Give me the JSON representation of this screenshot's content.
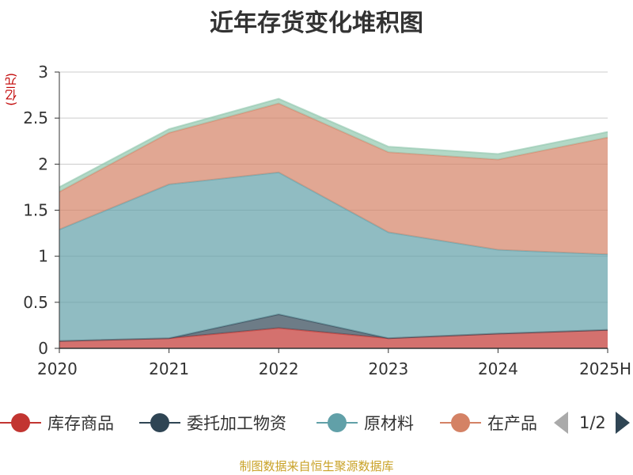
{
  "chart_data": {
    "type": "area",
    "stacked": true,
    "title": "近年存货变化堆积图",
    "unit": "(亿元)",
    "categories": [
      "2020",
      "2021",
      "2022",
      "2023",
      "2024",
      "2025H"
    ],
    "ylim": [
      0,
      3
    ],
    "yticks": [
      "0",
      "0.5",
      "1",
      "1.5",
      "2",
      "2.5",
      "3"
    ],
    "grid": true,
    "series": [
      {
        "name": "库存商品",
        "color": "#c23531",
        "values": [
          0.08,
          0.11,
          0.22,
          0.11,
          0.16,
          0.2
        ]
      },
      {
        "name": "委托加工物资",
        "color": "#2f4554",
        "values": [
          0.0,
          0.0,
          0.15,
          0.0,
          0.0,
          0.0
        ]
      },
      {
        "name": "原材料",
        "color": "#61a0a8",
        "values": [
          1.21,
          1.67,
          1.54,
          1.15,
          0.91,
          0.82
        ]
      },
      {
        "name": "在产品",
        "color": "#d48265",
        "values": [
          0.41,
          0.56,
          0.75,
          0.87,
          0.98,
          1.27
        ]
      },
      {
        "color": "#91c7ae",
        "values": [
          0.05,
          0.04,
          0.05,
          0.06,
          0.06,
          0.06
        ]
      }
    ],
    "legend_position": "bottom"
  },
  "legend": {
    "items": [
      {
        "label": "库存商品",
        "color": "#c23531"
      },
      {
        "label": "委托加工物资",
        "color": "#2f4554"
      },
      {
        "label": "原材料",
        "color": "#61a0a8"
      },
      {
        "label": "在产品",
        "color": "#d48265"
      }
    ],
    "page_text": "1/2"
  },
  "source_note": "制图数据来自恒生聚源数据库"
}
